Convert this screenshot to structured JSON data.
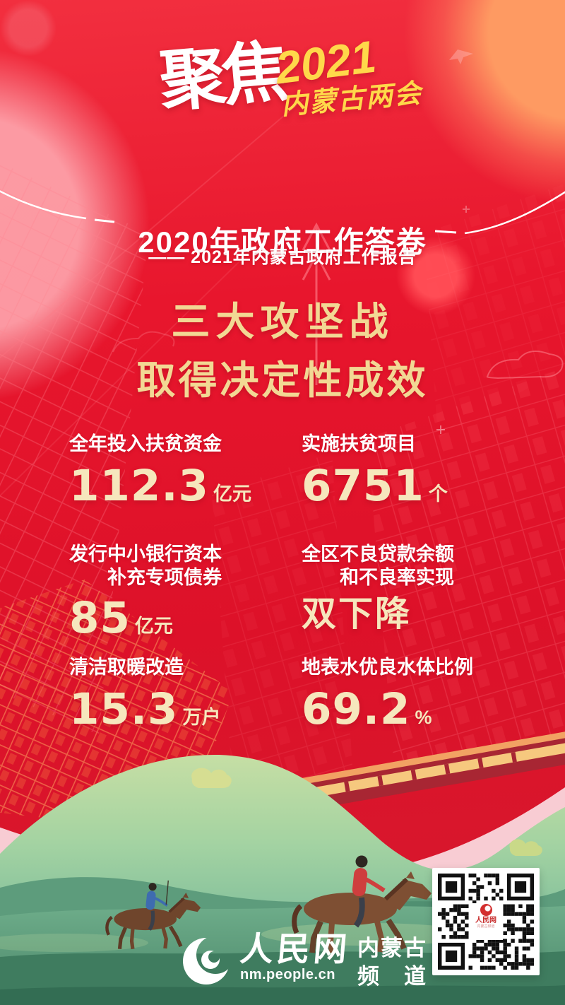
{
  "masthead": {
    "brand_script": "聚焦",
    "year_script": "2021",
    "event_script": "内蒙古两会"
  },
  "header": {
    "title": "2020年政府工作答卷",
    "subtitle": "—— 2021年内蒙古政府工作报告"
  },
  "headline": {
    "line1": "三大攻坚战",
    "line2": "取得决定性成效"
  },
  "stats": [
    {
      "label_line1": "全年投入扶贫资金",
      "label_line2": "",
      "value": "112.3",
      "unit": "亿元"
    },
    {
      "label_line1": "实施扶贫项目",
      "label_line2": "",
      "value": "6751",
      "unit": "个"
    },
    {
      "label_line1": "发行中小银行资本",
      "label_line2": "补充专项债券",
      "value": "85",
      "unit": "亿元"
    },
    {
      "label_line1": "全区不良贷款余额",
      "label_line2": "和不良率实现",
      "value": "双下降",
      "unit": ""
    },
    {
      "label_line1": "清洁取暖改造",
      "label_line2": "",
      "value": "15.3",
      "unit": "万户"
    },
    {
      "label_line1": "地表水优良水体比例",
      "label_line2": "",
      "value": "69.2",
      "unit": "%"
    }
  ],
  "footer": {
    "site_name": "人民网",
    "site_url": "nm.people.cn",
    "channel_line1": "内蒙古",
    "channel_line2": "频　道"
  },
  "qr_logo": {
    "line1": "人民网",
    "line2": "内蒙古频道"
  },
  "colors": {
    "background_red": "#e8162d",
    "headline_gold": "#f2d894",
    "number_cream": "#f6e7bd",
    "script_yellow": "#ffd84a",
    "grass_green": "#5d9c7c"
  }
}
